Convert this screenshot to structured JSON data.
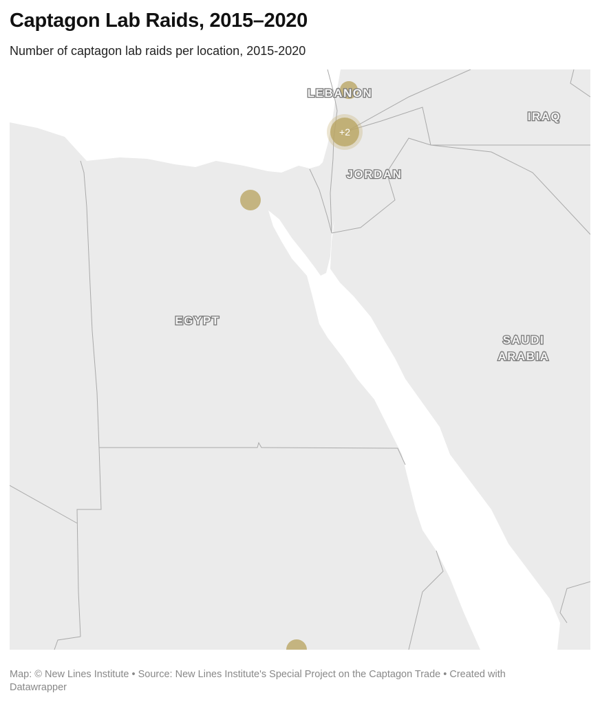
{
  "header": {
    "title": "Captagon Lab Raids, 2015–2020",
    "subtitle": "Number of captagon lab raids per location, 2015-2020"
  },
  "map": {
    "colors": {
      "land": "#ebebeb",
      "water": "#ffffff",
      "border": "#a9a9a9",
      "marker": "#b9a461"
    },
    "country_labels": {
      "lebanon": "LEBANON",
      "jordan": "JORDAN",
      "iraq": "IRAQ",
      "egypt": "EGYPT",
      "saudi_line1": "SAUDI",
      "saudi_line2": "ARABIA"
    },
    "markers": [
      {
        "name": "lebanon-marker",
        "label": ""
      },
      {
        "name": "cluster-marker",
        "label": "+2"
      },
      {
        "name": "cairo-marker",
        "label": ""
      },
      {
        "name": "sudan-marker",
        "label": ""
      }
    ]
  },
  "footer": {
    "text": "Map: © New Lines Institute • Source: New Lines Institute's Special Project on the Captagon Trade • Created with Datawrapper"
  }
}
